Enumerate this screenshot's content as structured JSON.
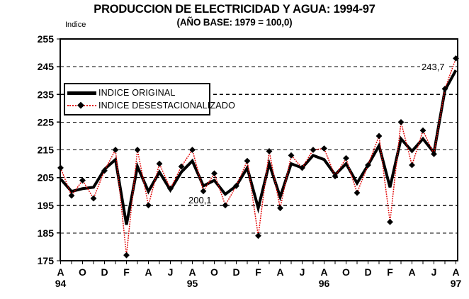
{
  "title": "PRODUCCION DE ELECTRICIDAD Y AGUA: 1994-97",
  "subtitle": "(AÑO BASE: 1979 = 100,0)",
  "y_axis_label": "Indice",
  "legend": {
    "original": "INDICE ORIGINAL",
    "desestacionalizado": "INDICE DESESTACIONALIZADO"
  },
  "colors": {
    "original_line": "#000000",
    "desestacionalizado_line": "#e10000",
    "marker": "#000000",
    "grid": "#000000",
    "background": "#ffffff"
  },
  "chart_data": {
    "type": "line",
    "title": "PRODUCCION DE ELECTRICIDAD Y AGUA: 1994-97",
    "subtitle": "(AÑO BASE: 1979 = 100,0)",
    "ylabel": "Indice",
    "ylim": [
      175,
      255
    ],
    "y_tick_labels": [
      175,
      185,
      195,
      205,
      215,
      225,
      235,
      245,
      255
    ],
    "grid": "dashed-horizontal",
    "x_range": "monthly from Aug 1994 to Aug 1997 (37 points), labels every 2 months",
    "x_tick_labels": [
      "A",
      "O",
      "D",
      "F",
      "A",
      "J",
      "A",
      "O",
      "D",
      "F",
      "A",
      "J",
      "A",
      "O",
      "D",
      "F",
      "A",
      "J",
      "A"
    ],
    "year_labels": [
      {
        "label": "94",
        "month_index": 0
      },
      {
        "label": "95",
        "month_index": 12
      },
      {
        "label": "96",
        "month_index": 24
      },
      {
        "label": "97",
        "month_index": 36
      }
    ],
    "legend_position": "upper-left-inside",
    "series": [
      {
        "name": "INDICE ORIGINAL",
        "style": "thick-solid-black",
        "values": [
          204.5,
          200,
          201,
          201.5,
          208,
          211.5,
          188,
          209,
          200,
          207,
          200.5,
          207,
          211,
          202,
          204,
          199,
          202,
          208.5,
          194,
          210,
          198,
          210,
          208.5,
          213,
          211.5,
          206,
          210,
          203,
          209.5,
          216.5,
          201.5,
          219,
          214.5,
          219,
          214,
          236.5,
          243.7
        ]
      },
      {
        "name": "INDICE DESESTACIONALIZADO",
        "style": "thin-dotted-red-with-black-diamond-markers",
        "values": [
          208.5,
          198.5,
          204,
          197.5,
          207.5,
          215,
          177,
          215,
          195,
          210,
          201,
          209,
          215,
          200.1,
          206.5,
          195,
          202,
          211,
          184,
          214.5,
          194,
          213,
          208.5,
          215,
          215.5,
          205.5,
          212,
          199.5,
          209.5,
          220,
          189,
          225,
          209.5,
          222,
          213.5,
          237,
          248
        ]
      }
    ],
    "point_annotations": [
      {
        "text": "200,1",
        "series": "INDICE DESESTACIONALIZADO",
        "month_index": 13,
        "value": 200.1
      },
      {
        "text": "243,7",
        "series": "INDICE ORIGINAL",
        "month_index": 36,
        "value": 243.7
      }
    ]
  }
}
